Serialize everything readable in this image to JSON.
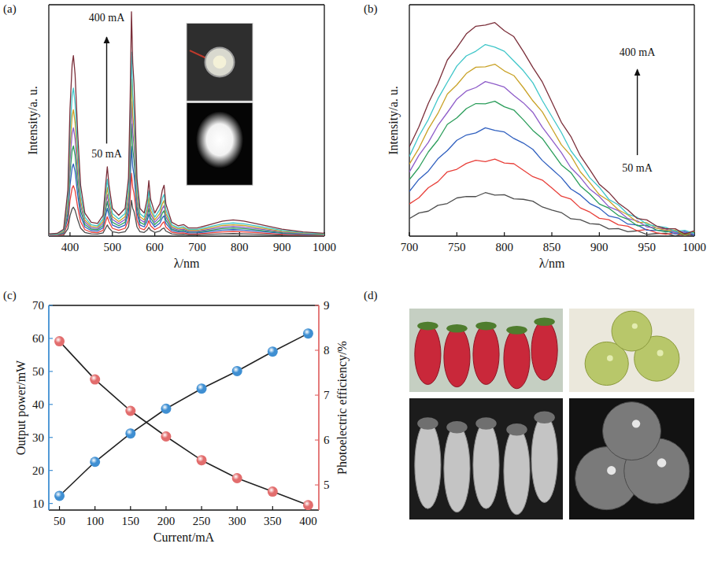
{
  "chart_data": [
    {
      "type": "line",
      "title": "(a)",
      "x_label": "λ/nm",
      "y_label": "Intensity/a. u.",
      "annotations": [
        "400 mA",
        "50 mA"
      ],
      "x": [
        350,
        370,
        385,
        395,
        400,
        405,
        408,
        412,
        418,
        425,
        435,
        450,
        465,
        478,
        484,
        488,
        492,
        500,
        515,
        530,
        538,
        542,
        545,
        548,
        551,
        554,
        558,
        565,
        575,
        582,
        586,
        590,
        600,
        612,
        618,
        622,
        626,
        640,
        655,
        668,
        680,
        700,
        730,
        760,
        785,
        810,
        850,
        900,
        950,
        1000
      ],
      "series": [
        {
          "color": "#4d4d4d",
          "values": [
            0.2,
            0.2,
            0.5,
            3.2,
            8.8,
            11.8,
            12.5,
            11.2,
            7.2,
            3.5,
            1.6,
            1.0,
            0.9,
            1.4,
            3.5,
            4.8,
            3.5,
            1.9,
            1.4,
            1.9,
            4.0,
            9.6,
            15.5,
            12.0,
            10.6,
            8.0,
            4.0,
            1.9,
            1.6,
            2.6,
            3.8,
            2.6,
            1.6,
            2.2,
            3.2,
            3.5,
            2.2,
            1.0,
            0.7,
            0.8,
            0.6,
            0.6,
            0.8,
            1.0,
            1.1,
            1.0,
            0.8,
            0.5,
            0.3,
            0.2
          ]
        },
        {
          "color": "#e8403a",
          "values": [
            0.3,
            0.3,
            0.8,
            5.6,
            15.4,
            20.7,
            21.8,
            19.6,
            12.6,
            6.2,
            2.8,
            1.7,
            1.5,
            2.5,
            6.2,
            8.4,
            6.2,
            3.4,
            2.5,
            3.4,
            7.0,
            16.8,
            27.2,
            21.0,
            18.5,
            14.0,
            7.0,
            3.4,
            2.8,
            4.5,
            6.7,
            4.5,
            2.8,
            3.9,
            5.6,
            6.2,
            3.9,
            1.7,
            1.3,
            1.4,
            1.0,
            1.0,
            1.4,
            1.8,
            2.0,
            1.8,
            1.4,
            0.8,
            0.5,
            0.3
          ]
        },
        {
          "color": "#2f5fbf",
          "values": [
            0.4,
            0.5,
            1.2,
            8.0,
            22.0,
            29.6,
            31.2,
            28.0,
            18.0,
            8.8,
            4.0,
            2.4,
            2.2,
            3.6,
            8.8,
            12.0,
            8.8,
            4.8,
            3.6,
            4.8,
            10.0,
            24.0,
            38.8,
            30.0,
            26.4,
            20.0,
            10.0,
            4.8,
            4.0,
            6.4,
            9.6,
            6.4,
            4.0,
            5.6,
            8.0,
            8.8,
            5.6,
            2.4,
            1.8,
            2.0,
            1.4,
            1.4,
            2.0,
            2.6,
            2.8,
            2.6,
            2.0,
            1.2,
            0.7,
            0.5
          ]
        },
        {
          "color": "#2a9d5a",
          "values": [
            0.5,
            0.6,
            1.5,
            10.0,
            27.5,
            37.0,
            39.0,
            35.0,
            22.5,
            11.0,
            5.0,
            3.0,
            2.8,
            4.5,
            11.0,
            15.0,
            11.0,
            6.0,
            4.5,
            6.0,
            12.5,
            30.0,
            48.5,
            37.5,
            33.0,
            25.0,
            12.5,
            6.0,
            5.0,
            8.0,
            12.0,
            8.0,
            5.0,
            7.0,
            10.0,
            11.0,
            7.0,
            3.0,
            2.3,
            2.5,
            1.8,
            1.8,
            2.5,
            3.3,
            3.5,
            3.3,
            2.5,
            1.5,
            0.9,
            0.6
          ]
        },
        {
          "color": "#8e5cc9",
          "values": [
            0.6,
            0.7,
            1.8,
            12.0,
            33.0,
            44.4,
            46.8,
            42.0,
            27.0,
            13.2,
            6.0,
            3.6,
            3.3,
            5.4,
            13.2,
            18.0,
            13.2,
            7.2,
            5.4,
            7.2,
            15.0,
            36.0,
            58.2,
            45.0,
            39.6,
            30.0,
            15.0,
            7.2,
            6.0,
            9.6,
            14.4,
            9.6,
            6.0,
            8.4,
            12.0,
            13.2,
            8.4,
            3.6,
            2.7,
            3.0,
            2.1,
            2.1,
            3.0,
            3.9,
            4.2,
            3.9,
            3.0,
            1.8,
            1.1,
            0.7
          ]
        },
        {
          "color": "#c9a227",
          "values": [
            0.7,
            0.8,
            2.1,
            14.0,
            38.5,
            51.8,
            54.6,
            49.0,
            31.5,
            15.4,
            7.0,
            4.2,
            3.9,
            6.3,
            15.4,
            21.0,
            15.4,
            8.4,
            6.3,
            8.4,
            17.5,
            42.0,
            67.9,
            52.5,
            46.2,
            35.0,
            17.5,
            8.4,
            7.0,
            11.2,
            16.8,
            11.2,
            7.0,
            9.8,
            14.0,
            15.4,
            9.8,
            4.2,
            3.2,
            3.5,
            2.5,
            2.5,
            3.5,
            4.6,
            4.9,
            4.6,
            3.5,
            2.1,
            1.3,
            0.8
          ]
        },
        {
          "color": "#3fc6c9",
          "values": [
            0.8,
            1.0,
            2.5,
            16.4,
            45.1,
            60.7,
            64.0,
            57.4,
            36.9,
            18.0,
            8.2,
            4.9,
            4.5,
            7.4,
            18.0,
            24.6,
            18.0,
            9.8,
            7.4,
            9.8,
            20.5,
            49.2,
            79.5,
            61.5,
            54.1,
            41.0,
            20.5,
            9.8,
            8.2,
            13.1,
            19.7,
            13.1,
            8.2,
            11.5,
            16.4,
            18.0,
            11.5,
            4.9,
            3.7,
            4.1,
            2.9,
            2.9,
            4.1,
            5.3,
            5.7,
            5.3,
            4.1,
            2.5,
            1.5,
            1.0
          ]
        },
        {
          "color": "#7b2f3a",
          "values": [
            1.0,
            1.2,
            3,
            20,
            55,
            74,
            78,
            70,
            45,
            22,
            10,
            6,
            5.5,
            9,
            22,
            30,
            22,
            12,
            9,
            12,
            25,
            60,
            97,
            75,
            66,
            50,
            25,
            12,
            10,
            16,
            24,
            16,
            10,
            14,
            20,
            22,
            14,
            6,
            4.5,
            5,
            3.5,
            3.5,
            5,
            6.5,
            7,
            6.5,
            5,
            3,
            1.8,
            1.2
          ]
        }
      ],
      "xlim": [
        350,
        1000
      ],
      "xticks": [
        400,
        500,
        600,
        700,
        800,
        900,
        1000
      ],
      "ylim": [
        0,
        100
      ],
      "tick_labels": "x"
    },
    {
      "type": "line",
      "title": "(b)",
      "x_label": "λ/nm",
      "y_label": "Intensity/a. u.",
      "annotations": [
        "400 mA",
        "50 mA"
      ],
      "x": [
        700,
        710,
        720,
        730,
        740,
        750,
        760,
        770,
        780,
        790,
        800,
        810,
        820,
        830,
        840,
        850,
        860,
        870,
        880,
        890,
        900,
        910,
        920,
        930,
        940,
        950,
        960,
        970,
        980,
        990,
        1000
      ],
      "series": [
        {
          "color": "#4d4d4d",
          "values": [
            7.6,
            10.0,
            10.8,
            13.3,
            14.1,
            16.5,
            17.1,
            17.1,
            18.8,
            17.7,
            17.9,
            16.1,
            15.9,
            15.1,
            12.6,
            11.3,
            10.2,
            7.5,
            7.1,
            5.4,
            5.1,
            3.1,
            3.3,
            1.9,
            2.3,
            0.7,
            1.1,
            1.2,
            0.1,
            1.3,
            0.2
          ]
        },
        {
          "color": "#e8403a",
          "values": [
            13.9,
            16.6,
            20.9,
            23.5,
            27.8,
            28.9,
            31.4,
            32.8,
            32.2,
            33.3,
            31.6,
            31.3,
            28.5,
            25.7,
            24.2,
            20.8,
            17.3,
            16.0,
            12.2,
            10.4,
            7.7,
            7.1,
            4.9,
            4.3,
            2.3,
            2.9,
            1.5,
            0.8,
            1.4,
            0.2,
            1.2
          ]
        },
        {
          "color": "#2f5fbf",
          "values": [
            19.3,
            24.5,
            28.1,
            33.4,
            37.0,
            41.4,
            43.7,
            44.6,
            46.8,
            45.7,
            45.0,
            42.2,
            40.2,
            37.5,
            32.7,
            29.0,
            25.3,
            20.4,
            17.8,
            14.1,
            12.1,
            8.7,
            7.8,
            5.2,
            4.8,
            2.6,
            2.5,
            2.3,
            1.0,
            1.8,
            0.4
          ]
        },
        {
          "color": "#2a9d5a",
          "values": [
            24.4,
            29.6,
            36.4,
            41.5,
            48.3,
            51.1,
            55.1,
            57.3,
            57.2,
            58.3,
            55.9,
            54.5,
            50.3,
            45.7,
            42.2,
            36.5,
            30.8,
            27.5,
            21.7,
            18.2,
            13.9,
            12.1,
            8.9,
            7.3,
            4.5,
            4.7,
            2.7,
            1.8,
            2.1,
            0.3,
            1.7
          ]
        },
        {
          "color": "#8e5cc9",
          "values": [
            27.7,
            34.9,
            40.5,
            47.8,
            53.4,
            59.2,
            62.7,
            64.2,
            66.8,
            65.7,
            64.4,
            60.8,
            57.6,
            53.5,
            47.1,
            41.6,
            36.1,
            29.6,
            25.4,
            20.3,
            17.1,
            12.7,
            11.0,
            7.6,
            6.6,
            4.0,
            3.5,
            3.1,
            1.6,
            2.2,
            0.8
          ]
        },
        {
          "color": "#c9a227",
          "values": [
            31.1,
            37.9,
            46.3,
            53.0,
            61.4,
            65.4,
            70.3,
            73.0,
            73.2,
            74.3,
            71.4,
            69.4,
            64.2,
            58.5,
            53.7,
            46.6,
            39.5,
            34.8,
            27.8,
            23.1,
            17.9,
            15.3,
            11.4,
            9.2,
            6.0,
            5.8,
            3.5,
            2.5,
            2.6,
            0.6,
            2.0
          ]
        },
        {
          "color": "#3fc6c9",
          "values": [
            34.4,
            43.2,
            50.4,
            59.3,
            66.5,
            73.5,
            77.9,
            79.9,
            82.8,
            81.7,
            79.9,
            75.7,
            71.5,
            66.3,
            58.6,
            51.7,
            44.8,
            36.9,
            31.5,
            25.2,
            21.1,
            15.9,
            13.5,
            9.5,
            8.1,
            5.1,
            4.3,
            3.8,
            2.1,
            2.5,
            1.1
          ]
        },
        {
          "color": "#7b2f3a",
          "values": [
            38.6,
            47.2,
            57.4,
            65.9,
            76.1,
            81.4,
            87.4,
            90.7,
            91.2,
            92.3,
            88.8,
            86.2,
            79.8,
            72.9,
            66.6,
            58.0,
            49.2,
            43.1,
            34.7,
            28.7,
            22.4,
            18.9,
            14.3,
            11.3,
            7.6,
            7.0,
            4.4,
            3.2,
            3.2,
            0.9,
            2.3
          ]
        }
      ],
      "xlim": [
        700,
        1000
      ],
      "xticks": [
        700,
        750,
        800,
        850,
        900,
        950,
        1000
      ],
      "ylim": [
        0,
        100
      ],
      "tick_labels": "x"
    },
    {
      "type": "line",
      "title": "(c)",
      "x_label": "Current/mA",
      "y_label": "Output power/mW",
      "y2_label": "Photoelectric efficiency/%",
      "x": [
        50,
        100,
        150,
        200,
        250,
        300,
        350,
        400
      ],
      "series": [
        {
          "color": "#3f8fd2",
          "marker": "circle",
          "values": [
            12.3,
            22.6,
            31.2,
            38.7,
            44.8,
            50.1,
            56.0,
            61.5
          ]
        },
        {
          "color": "#e26d6d",
          "marker": "circle",
          "axis": "y2",
          "values": [
            8.2,
            7.35,
            6.65,
            6.08,
            5.55,
            5.15,
            4.85,
            4.55
          ]
        }
      ],
      "xlim": [
        35,
        415
      ],
      "xticks": [
        50,
        100,
        150,
        200,
        250,
        300,
        350,
        400
      ],
      "ylim": [
        8,
        70
      ],
      "yticks": [
        10,
        20,
        30,
        40,
        50,
        60,
        70
      ],
      "y2lim": [
        4.44,
        9
      ],
      "y2ticks": [
        5,
        6,
        7,
        8,
        9
      ]
    },
    {
      "type": "image",
      "title": "(d)"
    }
  ]
}
